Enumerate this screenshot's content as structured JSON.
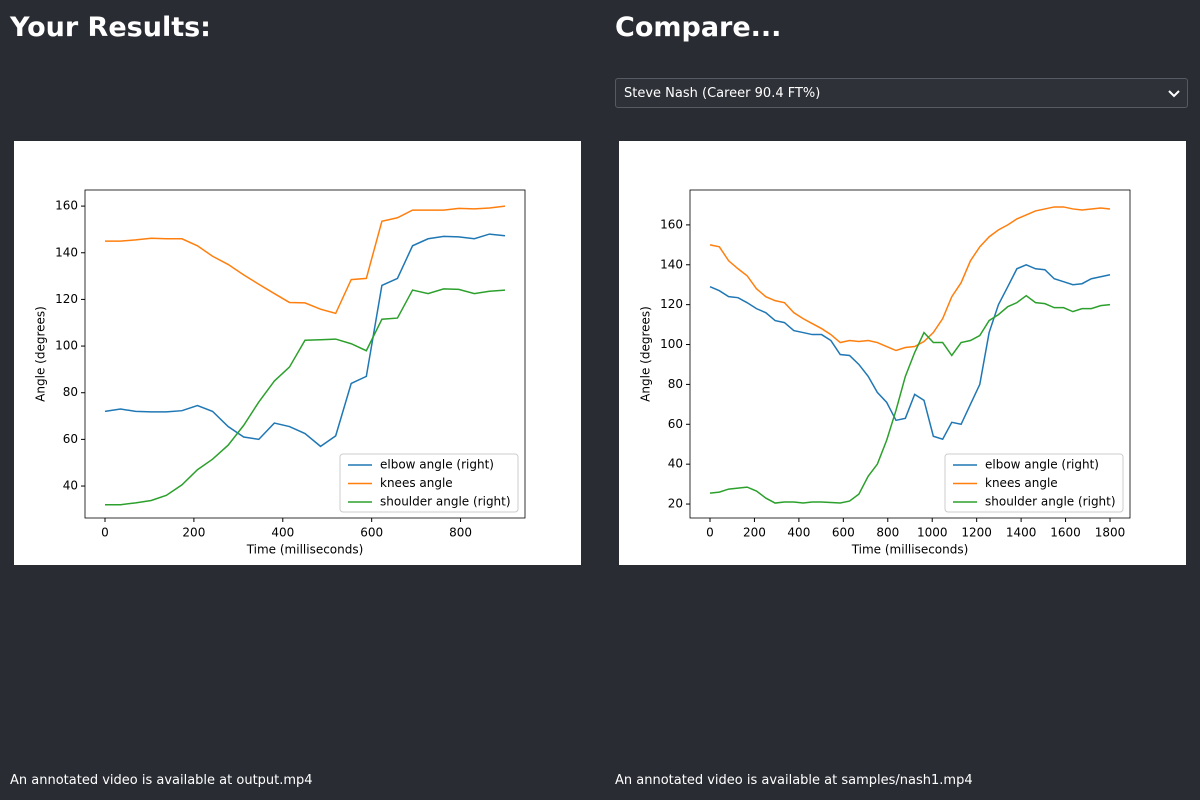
{
  "left": {
    "heading": "Your Results:",
    "note": "An annotated video is available at output.mp4"
  },
  "right": {
    "heading": "Compare...",
    "select": "Steve Nash (Career 90.4 FT%)",
    "note": "An annotated video is available at samples/nash1.mp4"
  },
  "chart_data": [
    {
      "type": "line",
      "xlabel": "Time (milliseconds)",
      "ylabel": "Angle (degrees)",
      "legend": "lower right",
      "xlim": [
        -45,
        945
      ],
      "ylim": [
        26.3,
        166.9
      ],
      "xticks": [
        0,
        200,
        400,
        600,
        800
      ],
      "yticks": [
        40,
        60,
        80,
        100,
        120,
        140,
        160
      ],
      "x": [
        0,
        35,
        69,
        104,
        138,
        173,
        208,
        242,
        277,
        312,
        346,
        381,
        415,
        450,
        485,
        519,
        554,
        588,
        623,
        658,
        692,
        727,
        762,
        796,
        831,
        865,
        900
      ],
      "series": [
        {
          "name": "elbow angle (right)",
          "color": "#1f77b4",
          "values": [
            72,
            73,
            72,
            71.8,
            71.8,
            72.3,
            74.5,
            72,
            65.5,
            61,
            60,
            67,
            65.5,
            62.5,
            57,
            61.5,
            84,
            87,
            126,
            129,
            143,
            146,
            147,
            146.8,
            146,
            148,
            147.3
          ]
        },
        {
          "name": "knees angle",
          "color": "#ff7f0e",
          "values": [
            145,
            145,
            145.5,
            146.2,
            146,
            146,
            143,
            138.5,
            135,
            130.5,
            126.5,
            122.5,
            118.7,
            118.5,
            115.8,
            114,
            128.5,
            129,
            153.5,
            155,
            158.3,
            158.3,
            158.3,
            159,
            158.8,
            159.2,
            160
          ]
        },
        {
          "name": "shoulder angle (right)",
          "color": "#2ca02c",
          "values": [
            32,
            32,
            32.8,
            33.8,
            36,
            40.5,
            47,
            51.5,
            57.5,
            66,
            76,
            85,
            91,
            102.5,
            102.7,
            103,
            101,
            98,
            111.5,
            112,
            124,
            122.5,
            124.5,
            124.3,
            122.5,
            123.5,
            124
          ]
        }
      ]
    },
    {
      "type": "line",
      "xlabel": "Time (milliseconds)",
      "ylabel": "Angle (degrees)",
      "legend": "lower right",
      "xlim": [
        -90,
        1890
      ],
      "ylim": [
        13,
        177.5
      ],
      "xticks": [
        0,
        200,
        400,
        600,
        800,
        1000,
        1200,
        1400,
        1600,
        1800
      ],
      "yticks": [
        20,
        40,
        60,
        80,
        100,
        120,
        140,
        160
      ],
      "x": [
        0,
        42,
        84,
        126,
        167,
        209,
        251,
        293,
        335,
        377,
        419,
        460,
        502,
        544,
        586,
        628,
        670,
        712,
        753,
        795,
        837,
        879,
        921,
        963,
        1005,
        1047,
        1088,
        1130,
        1172,
        1214,
        1256,
        1298,
        1340,
        1381,
        1423,
        1465,
        1507,
        1549,
        1591,
        1633,
        1674,
        1716,
        1758,
        1800
      ],
      "series": [
        {
          "name": "elbow angle (right)",
          "color": "#1f77b4",
          "values": [
            129,
            127,
            124,
            123.5,
            121,
            118,
            116,
            112,
            111,
            107,
            106,
            105,
            105,
            102,
            95,
            94.5,
            90,
            84,
            76,
            71,
            62,
            63,
            75,
            72,
            54,
            52.5,
            61,
            60,
            70,
            80,
            106,
            120,
            129,
            138,
            140,
            138,
            137.5,
            133,
            131.5,
            130,
            130.5,
            133,
            134,
            135
          ]
        },
        {
          "name": "knees angle",
          "color": "#ff7f0e",
          "values": [
            150,
            149,
            142,
            138,
            134.5,
            128,
            124,
            122,
            121,
            116,
            113,
            110.5,
            108,
            105,
            101,
            102,
            101.5,
            102,
            101,
            99,
            97,
            98.5,
            99,
            101.5,
            106,
            113,
            124,
            131,
            142,
            149,
            154,
            157.5,
            160,
            163,
            165,
            167,
            168,
            169,
            169,
            168,
            167.5,
            168,
            168.5,
            168
          ]
        },
        {
          "name": "shoulder angle (right)",
          "color": "#2ca02c",
          "values": [
            25.5,
            26,
            27.5,
            28,
            28.5,
            26.5,
            23,
            20.5,
            21,
            21,
            20.5,
            21,
            21,
            20.8,
            20.5,
            21.5,
            25,
            34,
            40,
            52,
            67,
            84,
            96,
            106,
            101,
            101,
            94.5,
            101,
            102,
            104.5,
            112,
            115,
            119,
            121,
            124.5,
            121,
            120.5,
            118.5,
            118.5,
            116.5,
            118,
            118,
            119.5,
            120
          ]
        }
      ]
    }
  ]
}
